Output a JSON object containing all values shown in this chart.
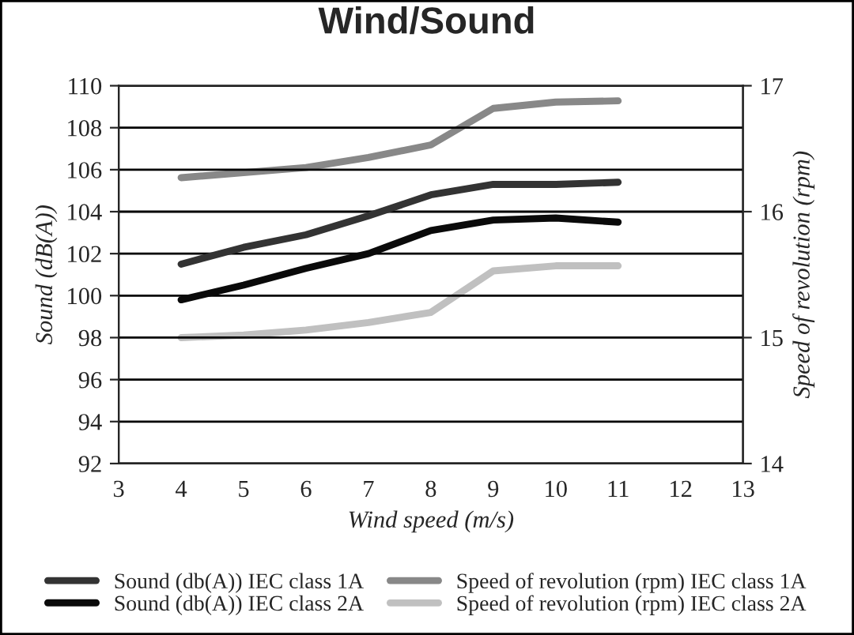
{
  "chart_data": {
    "type": "line",
    "title": "Wind/Sound",
    "xlabel": "Wind speed (m/s)",
    "ylabel": "Sound (dB(A))",
    "y2label": "Speed of revolution (rpm)",
    "x": [
      4,
      5,
      6,
      7,
      8,
      9,
      10,
      11
    ],
    "series": [
      {
        "name": "Sound (db(A)) IEC class 1A",
        "color": "#333333",
        "values": [
          101.5,
          102.3,
          102.9,
          103.8,
          104.8,
          105.3,
          105.3,
          105.4
        ]
      },
      {
        "name": "Sound (db(A)) IEC class 2A",
        "color": "#0a0a0a",
        "values": [
          99.8,
          100.5,
          101.3,
          102.0,
          103.1,
          103.6,
          103.7,
          103.5
        ]
      },
      {
        "name": "Speed of revolution (rpm) IEC class 1A",
        "color": "#888888",
        "axis": "y2",
        "values": [
          16.27,
          16.31,
          16.35,
          16.43,
          16.53,
          16.82,
          16.87,
          16.88
        ]
      },
      {
        "name": "Speed of revolution (rpm) IEC class 2A",
        "color": "#c0c0c0",
        "axis": "y2",
        "values": [
          15.0,
          15.02,
          15.06,
          15.12,
          15.2,
          15.53,
          15.57,
          15.57
        ]
      }
    ],
    "xlim": [
      3,
      13
    ],
    "xticks": [
      3,
      4,
      5,
      6,
      7,
      8,
      9,
      10,
      11,
      12,
      13
    ],
    "ylim": [
      92,
      110
    ],
    "yticks": [
      92,
      94,
      96,
      98,
      100,
      102,
      104,
      106,
      108,
      110
    ],
    "y2lim": [
      14,
      17
    ],
    "y2ticks": [
      14,
      15,
      16,
      17
    ],
    "grid": "y",
    "legend": "bottom",
    "line_style": "solid",
    "marker": "none"
  }
}
